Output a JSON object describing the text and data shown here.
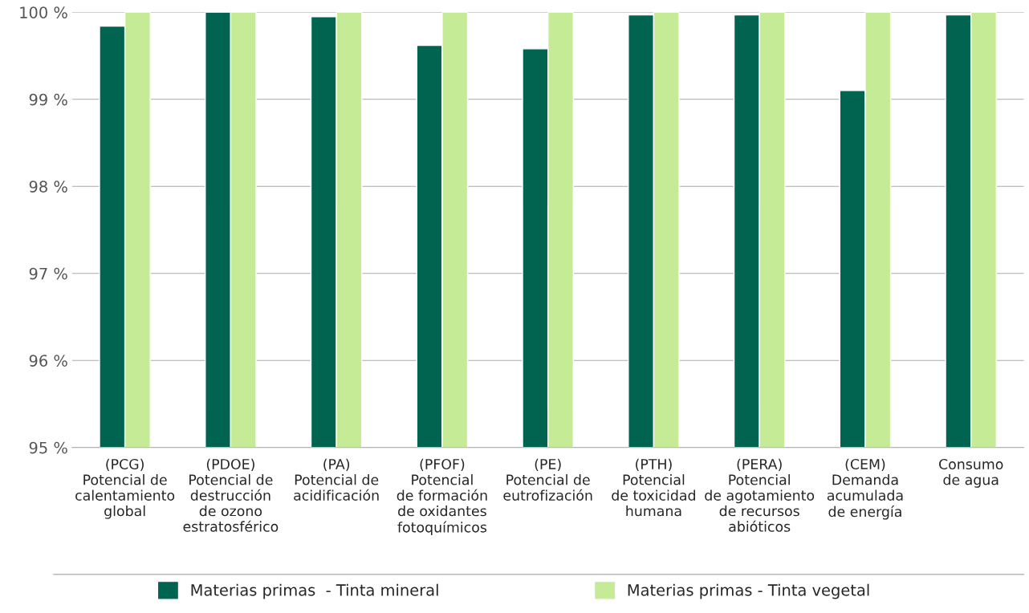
{
  "chart_data": {
    "type": "bar",
    "categories": [
      "(PCG)\nPotencial de\ncalentamiento\nglobal",
      "(PDOE)\nPotencial de\ndestrucción\nde ozono\nestratosférico",
      "(PA)\nPotencial de\nacidificación",
      "(PFOF)\nPotencial\nde formación\nde oxidantes\nfotoquímicos",
      "(PE)\nPotencial de\neutrofización",
      "(PTH)\nPotencial\nde toxicidad\nhumana",
      "(PERA)\nPotencial\nde agotamiento\nde recursos\nabióticos",
      "(CEM)\nDemanda\nacumulada\nde energía",
      "Consumo\nde agua"
    ],
    "series": [
      {
        "name": "Materias primas  - Tinta mineral",
        "color": "#006450",
        "values": [
          99.84,
          100.0,
          99.95,
          99.62,
          99.58,
          99.97,
          99.97,
          99.1,
          99.97
        ]
      },
      {
        "name": "Materias primas - Tinta vegetal",
        "color": "#c5eb96",
        "values": [
          100.0,
          100.0,
          100.0,
          100.0,
          100.0,
          100.0,
          100.0,
          100.0,
          100.0
        ]
      }
    ],
    "ylim": [
      95,
      100
    ],
    "yticks": [
      {
        "value": 95,
        "label": "95 %"
      },
      {
        "value": 96,
        "label": "96 %"
      },
      {
        "value": 97,
        "label": "97 %"
      },
      {
        "value": 98,
        "label": "98 %"
      },
      {
        "value": 99,
        "label": "99 %"
      },
      {
        "value": 100,
        "label": "100 %"
      }
    ],
    "grid": "y",
    "legend": "bottom"
  }
}
